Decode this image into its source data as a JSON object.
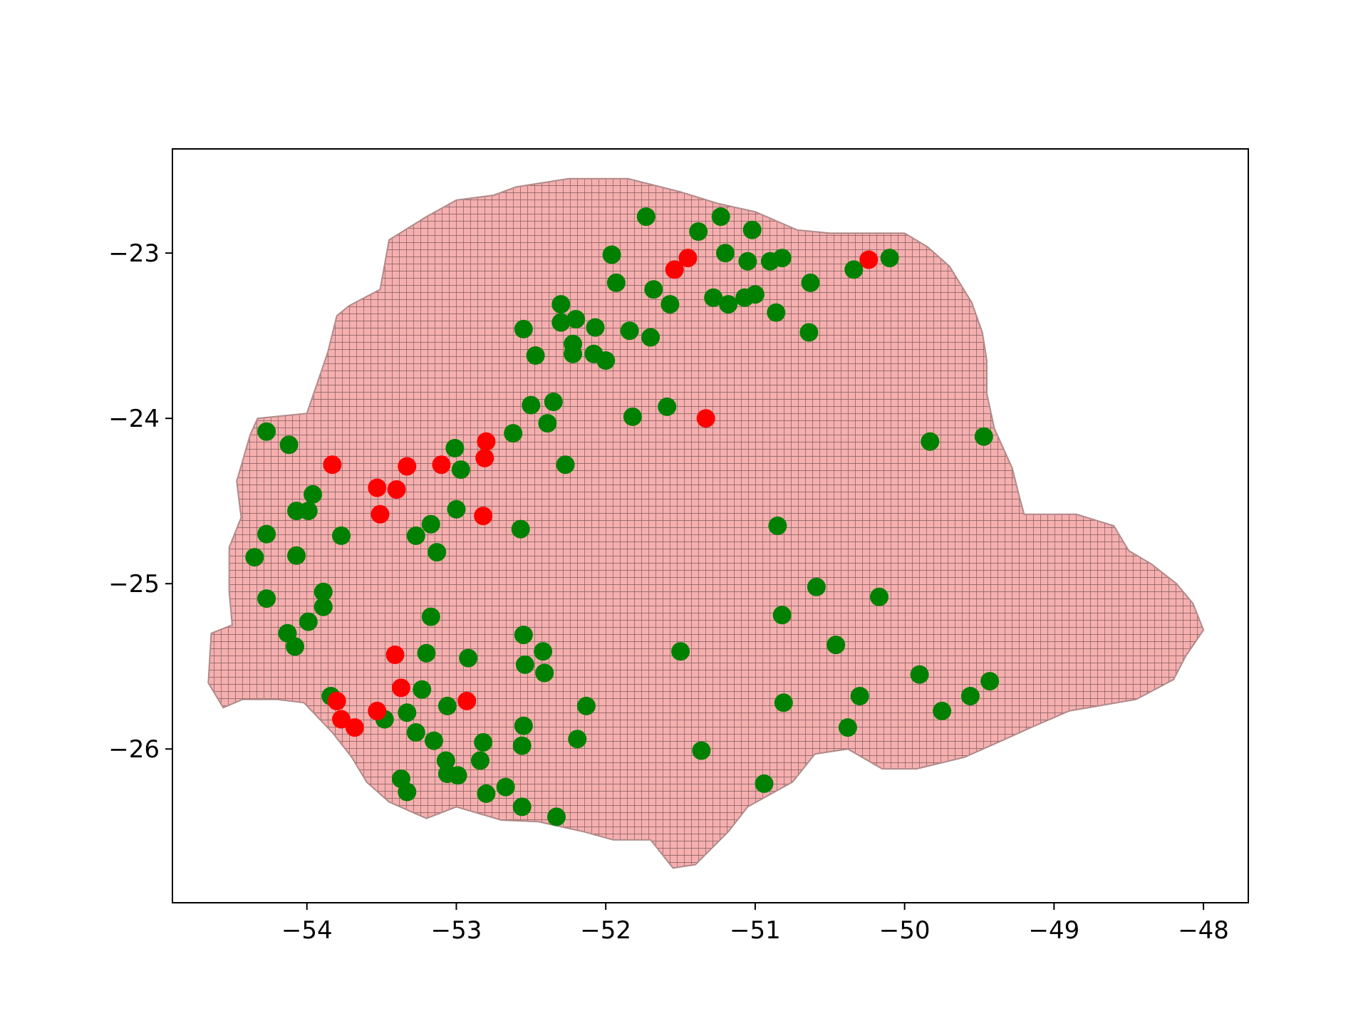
{
  "chart_data": {
    "type": "scatter",
    "title": "",
    "xlabel": "",
    "ylabel": "",
    "xlim": [
      -54.9,
      -47.7
    ],
    "ylim": [
      -26.93,
      -22.37
    ],
    "grid": false,
    "legend": "none",
    "xticks": [
      -54,
      -53,
      -52,
      -51,
      -50,
      -49,
      -48
    ],
    "yticks": [
      -23,
      -24,
      -25,
      -26
    ],
    "xtick_labels": [
      "−54",
      "−53",
      "−52",
      "−51",
      "−50",
      "−49",
      "−48"
    ],
    "ytick_labels": [
      "−23",
      "−24",
      "−25",
      "−26"
    ],
    "colors": {
      "region_fill": "#f4a6a6",
      "region_grid": "#4a2a2a",
      "green": "#008000",
      "red": "#ff0000",
      "axes": "#000000"
    },
    "region_outline": [
      [
        -54.66,
        -25.6
      ],
      [
        -54.64,
        -25.3
      ],
      [
        -54.5,
        -25.25
      ],
      [
        -54.52,
        -25.05
      ],
      [
        -54.52,
        -24.78
      ],
      [
        -54.44,
        -24.6
      ],
      [
        -54.47,
        -24.38
      ],
      [
        -54.38,
        -24.1
      ],
      [
        -54.33,
        -24.0
      ],
      [
        -54.0,
        -23.97
      ],
      [
        -53.86,
        -23.6
      ],
      [
        -53.8,
        -23.38
      ],
      [
        -53.72,
        -23.32
      ],
      [
        -53.51,
        -23.22
      ],
      [
        -53.45,
        -22.92
      ],
      [
        -53.2,
        -22.78
      ],
      [
        -53.0,
        -22.68
      ],
      [
        -52.75,
        -22.65
      ],
      [
        -52.6,
        -22.6
      ],
      [
        -52.25,
        -22.55
      ],
      [
        -51.85,
        -22.55
      ],
      [
        -51.5,
        -22.63
      ],
      [
        -51.25,
        -22.7
      ],
      [
        -51.0,
        -22.75
      ],
      [
        -50.72,
        -22.86
      ],
      [
        -50.5,
        -22.88
      ],
      [
        -50.0,
        -22.88
      ],
      [
        -49.85,
        -22.96
      ],
      [
        -49.7,
        -23.08
      ],
      [
        -49.55,
        -23.3
      ],
      [
        -49.48,
        -23.48
      ],
      [
        -49.45,
        -23.65
      ],
      [
        -49.45,
        -23.85
      ],
      [
        -49.4,
        -24.06
      ],
      [
        -49.28,
        -24.3
      ],
      [
        -49.23,
        -24.48
      ],
      [
        -49.2,
        -24.58
      ],
      [
        -48.85,
        -24.58
      ],
      [
        -48.6,
        -24.65
      ],
      [
        -48.5,
        -24.8
      ],
      [
        -48.35,
        -24.88
      ],
      [
        -48.18,
        -25.0
      ],
      [
        -48.07,
        -25.12
      ],
      [
        -48.0,
        -25.28
      ],
      [
        -48.12,
        -25.44
      ],
      [
        -48.2,
        -25.58
      ],
      [
        -48.45,
        -25.7
      ],
      [
        -48.9,
        -25.77
      ],
      [
        -49.18,
        -25.88
      ],
      [
        -49.35,
        -25.95
      ],
      [
        -49.6,
        -26.05
      ],
      [
        -49.92,
        -26.12
      ],
      [
        -50.15,
        -26.12
      ],
      [
        -50.38,
        -26.0
      ],
      [
        -50.6,
        -26.03
      ],
      [
        -50.75,
        -26.2
      ],
      [
        -51.05,
        -26.35
      ],
      [
        -51.18,
        -26.5
      ],
      [
        -51.4,
        -26.7
      ],
      [
        -51.55,
        -26.72
      ],
      [
        -51.7,
        -26.55
      ],
      [
        -51.95,
        -26.55
      ],
      [
        -52.15,
        -26.5
      ],
      [
        -52.45,
        -26.44
      ],
      [
        -52.7,
        -26.43
      ],
      [
        -53.0,
        -26.35
      ],
      [
        -53.2,
        -26.42
      ],
      [
        -53.45,
        -26.32
      ],
      [
        -53.6,
        -26.2
      ],
      [
        -53.7,
        -26.05
      ],
      [
        -53.83,
        -25.9
      ],
      [
        -54.02,
        -25.72
      ],
      [
        -54.2,
        -25.7
      ],
      [
        -54.43,
        -25.7
      ],
      [
        -54.56,
        -25.75
      ],
      [
        -54.66,
        -25.6
      ]
    ],
    "series": [
      {
        "color": "green",
        "points": [
          [
            -51.73,
            -22.78
          ],
          [
            -51.38,
            -22.87
          ],
          [
            -51.23,
            -22.78
          ],
          [
            -51.02,
            -22.86
          ],
          [
            -51.96,
            -23.01
          ],
          [
            -51.2,
            -23.0
          ],
          [
            -51.05,
            -23.05
          ],
          [
            -50.9,
            -23.05
          ],
          [
            -50.82,
            -23.03
          ],
          [
            -50.34,
            -23.1
          ],
          [
            -50.1,
            -23.03
          ],
          [
            -51.93,
            -23.18
          ],
          [
            -51.68,
            -23.22
          ],
          [
            -51.57,
            -23.31
          ],
          [
            -51.28,
            -23.27
          ],
          [
            -51.18,
            -23.31
          ],
          [
            -51.07,
            -23.27
          ],
          [
            -51.0,
            -23.25
          ],
          [
            -50.63,
            -23.18
          ],
          [
            -52.3,
            -23.31
          ],
          [
            -52.3,
            -23.42
          ],
          [
            -52.2,
            -23.4
          ],
          [
            -52.55,
            -23.46
          ],
          [
            -52.07,
            -23.45
          ],
          [
            -51.84,
            -23.47
          ],
          [
            -51.7,
            -23.51
          ],
          [
            -50.86,
            -23.36
          ],
          [
            -50.64,
            -23.48
          ],
          [
            -52.22,
            -23.55
          ],
          [
            -52.47,
            -23.62
          ],
          [
            -52.22,
            -23.61
          ],
          [
            -52.08,
            -23.61
          ],
          [
            -52.0,
            -23.65
          ],
          [
            -52.5,
            -23.92
          ],
          [
            -52.35,
            -23.9
          ],
          [
            -52.39,
            -24.03
          ],
          [
            -51.59,
            -23.93
          ],
          [
            -51.82,
            -23.99
          ],
          [
            -52.62,
            -24.09
          ],
          [
            -52.27,
            -24.28
          ],
          [
            -54.27,
            -24.08
          ],
          [
            -54.12,
            -24.16
          ],
          [
            -53.01,
            -24.18
          ],
          [
            -52.97,
            -24.31
          ],
          [
            -53.96,
            -24.46
          ],
          [
            -54.07,
            -24.56
          ],
          [
            -53.99,
            -24.56
          ],
          [
            -53.0,
            -24.55
          ],
          [
            -52.57,
            -24.67
          ],
          [
            -53.77,
            -24.71
          ],
          [
            -54.27,
            -24.7
          ],
          [
            -53.17,
            -24.64
          ],
          [
            -53.27,
            -24.71
          ],
          [
            -54.35,
            -24.84
          ],
          [
            -54.07,
            -24.83
          ],
          [
            -53.13,
            -24.81
          ],
          [
            -53.89,
            -25.05
          ],
          [
            -53.89,
            -25.14
          ],
          [
            -54.27,
            -25.09
          ],
          [
            -53.99,
            -25.23
          ],
          [
            -54.13,
            -25.3
          ],
          [
            -54.08,
            -25.38
          ],
          [
            -53.17,
            -25.2
          ],
          [
            -52.55,
            -25.31
          ],
          [
            -52.54,
            -25.49
          ],
          [
            -52.42,
            -25.41
          ],
          [
            -52.41,
            -25.54
          ],
          [
            -53.2,
            -25.42
          ],
          [
            -52.92,
            -25.45
          ],
          [
            -51.5,
            -25.41
          ],
          [
            -50.59,
            -25.02
          ],
          [
            -50.17,
            -25.08
          ],
          [
            -50.82,
            -25.19
          ],
          [
            -50.46,
            -25.37
          ],
          [
            -53.84,
            -25.68
          ],
          [
            -53.23,
            -25.64
          ],
          [
            -53.06,
            -25.74
          ],
          [
            -53.33,
            -25.78
          ],
          [
            -53.48,
            -25.82
          ],
          [
            -52.13,
            -25.74
          ],
          [
            -50.81,
            -25.72
          ],
          [
            -50.3,
            -25.68
          ],
          [
            -49.9,
            -25.55
          ],
          [
            -49.75,
            -25.77
          ],
          [
            -49.56,
            -25.68
          ],
          [
            -49.43,
            -25.59
          ],
          [
            -52.55,
            -25.86
          ],
          [
            -53.27,
            -25.9
          ],
          [
            -53.15,
            -25.95
          ],
          [
            -52.82,
            -25.96
          ],
          [
            -52.19,
            -25.94
          ],
          [
            -52.56,
            -25.98
          ],
          [
            -50.38,
            -25.87
          ],
          [
            -51.36,
            -26.01
          ],
          [
            -53.07,
            -26.07
          ],
          [
            -53.06,
            -26.15
          ],
          [
            -52.99,
            -26.16
          ],
          [
            -52.84,
            -26.07
          ],
          [
            -53.37,
            -26.18
          ],
          [
            -53.33,
            -26.26
          ],
          [
            -52.8,
            -26.27
          ],
          [
            -52.67,
            -26.23
          ],
          [
            -52.56,
            -26.35
          ],
          [
            -52.33,
            -26.41
          ],
          [
            -50.94,
            -26.21
          ],
          [
            -49.83,
            -24.14
          ],
          [
            -49.47,
            -24.11
          ],
          [
            -50.85,
            -24.65
          ]
        ]
      },
      {
        "color": "red",
        "points": [
          [
            -51.45,
            -23.03
          ],
          [
            -51.54,
            -23.1
          ],
          [
            -50.24,
            -23.04
          ],
          [
            -51.33,
            -24.0
          ],
          [
            -52.8,
            -24.14
          ],
          [
            -52.81,
            -24.24
          ],
          [
            -53.1,
            -24.28
          ],
          [
            -53.33,
            -24.29
          ],
          [
            -53.83,
            -24.28
          ],
          [
            -53.53,
            -24.42
          ],
          [
            -53.4,
            -24.43
          ],
          [
            -53.51,
            -24.58
          ],
          [
            -52.82,
            -24.59
          ],
          [
            -53.41,
            -25.43
          ],
          [
            -53.37,
            -25.63
          ],
          [
            -53.8,
            -25.71
          ],
          [
            -52.93,
            -25.71
          ],
          [
            -53.53,
            -25.77
          ],
          [
            -53.77,
            -25.82
          ],
          [
            -53.68,
            -25.87
          ]
        ]
      }
    ]
  }
}
